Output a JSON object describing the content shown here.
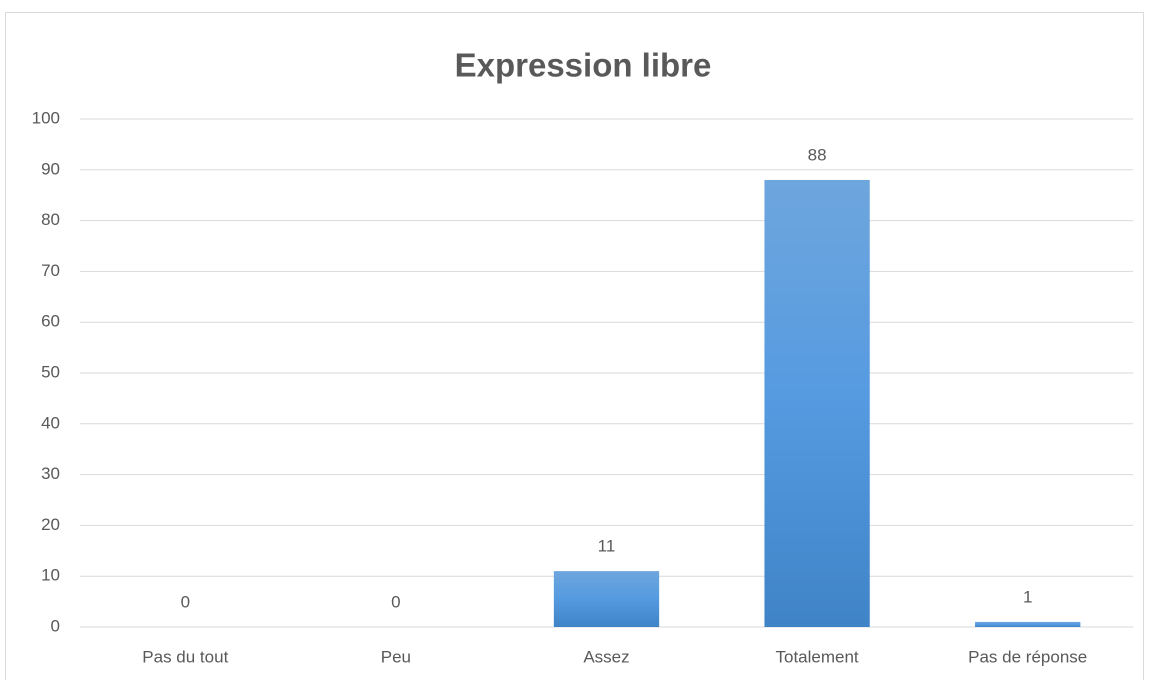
{
  "chart_data": {
    "type": "bar",
    "title": "Expression libre",
    "categories": [
      "Pas du tout",
      "Peu",
      "Assez",
      "Totalement",
      "Pas de réponse"
    ],
    "values": [
      0,
      0,
      11,
      88,
      1
    ],
    "color": "#5b9bd5",
    "ylim": [
      0,
      100
    ],
    "yticks": [
      0,
      10,
      20,
      30,
      40,
      50,
      60,
      70,
      80,
      90,
      100
    ],
    "grid": true
  }
}
